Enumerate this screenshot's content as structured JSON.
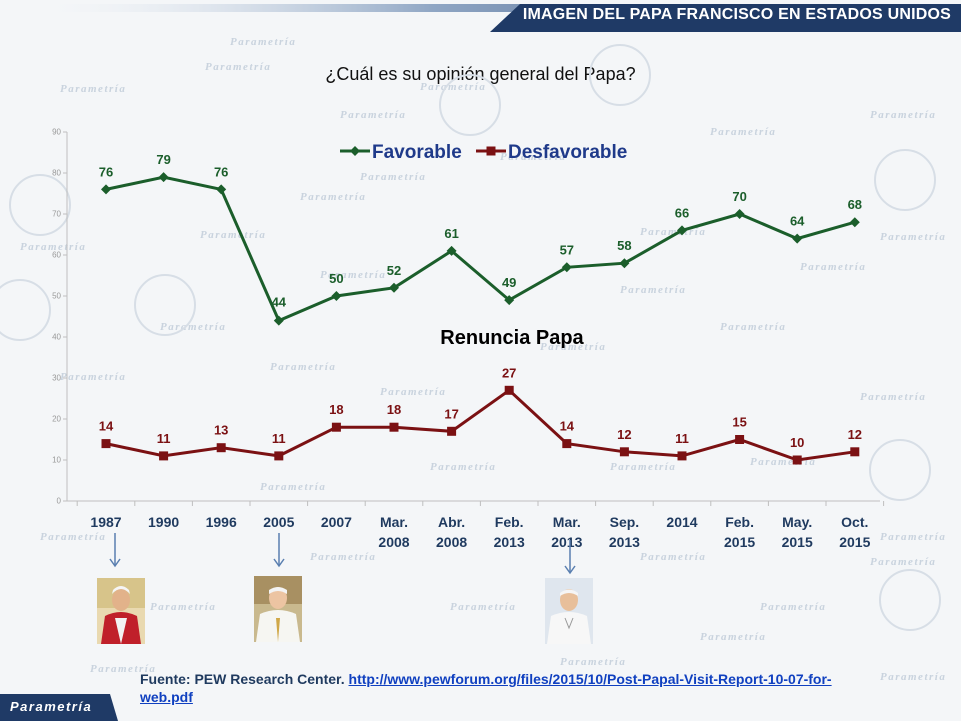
{
  "banner": {
    "title": "IMAGEN DEL PAPA FRANCISCO EN ESTADOS UNIDOS"
  },
  "watermark": "Parametría",
  "chart_data": {
    "type": "line",
    "title": "¿Cuál es su opinión general del Papa?",
    "categories": [
      [
        "1987"
      ],
      [
        "1990"
      ],
      [
        "1996"
      ],
      [
        "2005"
      ],
      [
        "2007"
      ],
      [
        "Mar.",
        "2008"
      ],
      [
        "Abr.",
        "2008"
      ],
      [
        "Feb.",
        "2013"
      ],
      [
        "Mar.",
        "2013"
      ],
      [
        "Sep.",
        "2013"
      ],
      [
        "2014"
      ],
      [
        "Feb.",
        "2015"
      ],
      [
        "May.",
        "2015"
      ],
      [
        "Oct.",
        "2015"
      ]
    ],
    "series": [
      {
        "name": "Favorable",
        "color": "#1b5e2b",
        "values": [
          76,
          79,
          76,
          44,
          50,
          52,
          61,
          49,
          57,
          58,
          66,
          70,
          64,
          68
        ]
      },
      {
        "name": "Desfavorable",
        "color": "#7b1113",
        "values": [
          14,
          11,
          13,
          11,
          18,
          18,
          17,
          27,
          14,
          12,
          11,
          15,
          10,
          12
        ]
      }
    ],
    "ylim": [
      0,
      90
    ],
    "yticks": [
      0,
      10,
      20,
      30,
      40,
      50,
      60,
      70,
      80,
      90
    ],
    "annotation": "Renuncia Papa",
    "legend": "top-center",
    "grid": false
  },
  "source": {
    "label": "Fuente: PEW Research Center.",
    "url": "http://www.pewforum.org/files/2015/10/Post-Papal-Visit-Report-10-07-for-web.pdf"
  },
  "logo": {
    "text": "Parametría"
  }
}
